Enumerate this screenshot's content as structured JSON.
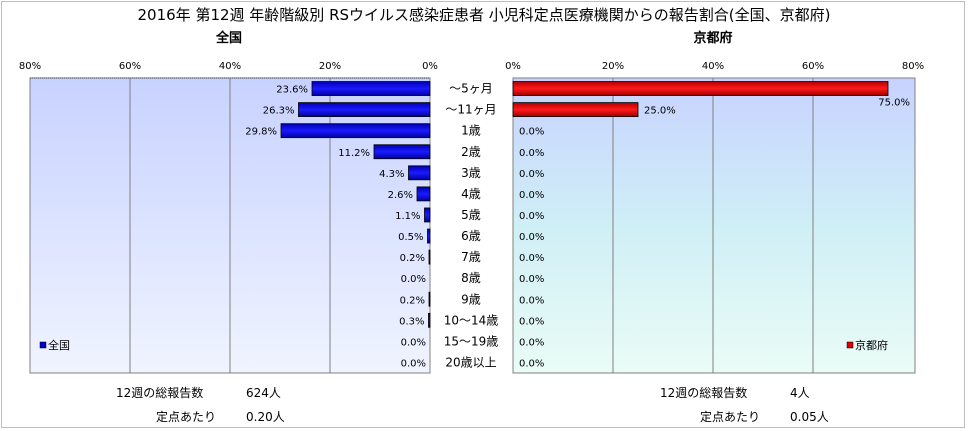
{
  "title": "2016年 第12週 年齢階級別 RSウイルス感染症患者 小児科定点医療機関からの報告割合(全国、京都府)",
  "chart_data": {
    "type": "bar",
    "orientation": "horizontal",
    "categories": [
      "～5ヶ月",
      "～11ヶ月",
      "1歳",
      "2歳",
      "3歳",
      "4歳",
      "5歳",
      "6歳",
      "7歳",
      "8歳",
      "9歳",
      "10～14歳",
      "15～19歳",
      "20歳以上"
    ],
    "xlim": [
      0,
      80
    ],
    "ticks": [
      "80%",
      "60%",
      "40%",
      "20%",
      "0%"
    ],
    "ticks_right": [
      "0%",
      "20%",
      "40%",
      "60%",
      "80%"
    ],
    "grid": true,
    "panels": [
      {
        "subtitle": "全国",
        "legend": "全国",
        "color": "#0000cc",
        "values": [
          23.6,
          26.3,
          29.8,
          11.2,
          4.3,
          2.6,
          1.1,
          0.5,
          0.2,
          0.0,
          0.2,
          0.3,
          0.0,
          0.0
        ],
        "labels": [
          "23.6%",
          "26.3%",
          "29.8%",
          "11.2%",
          "4.3%",
          "2.6%",
          "1.1%",
          "0.5%",
          "0.2%",
          "0.0%",
          "0.2%",
          "0.3%",
          "0.0%",
          "0.0%"
        ]
      },
      {
        "subtitle": "京都府",
        "legend": "京都府",
        "color": "#dd0000",
        "values": [
          75.0,
          25.0,
          0,
          0,
          0,
          0,
          0,
          0,
          0,
          0,
          0,
          0,
          0,
          0
        ],
        "labels": [
          "75.0%",
          "25.0%",
          "0.0%",
          "0.0%",
          "0.0%",
          "0.0%",
          "0.0%",
          "0.0%",
          "0.0%",
          "0.0%",
          "0.0%",
          "0.0%",
          "0.0%",
          "0.0%"
        ]
      }
    ]
  },
  "footer": {
    "left": {
      "total_label": "12週の総報告数",
      "total_value": "624人",
      "per_label": "定点あたり",
      "per_value": "0.20人"
    },
    "right": {
      "total_label": "12週の総報告数",
      "total_value": "4人",
      "per_label": "定点あたり",
      "per_value": "0.05人"
    }
  }
}
